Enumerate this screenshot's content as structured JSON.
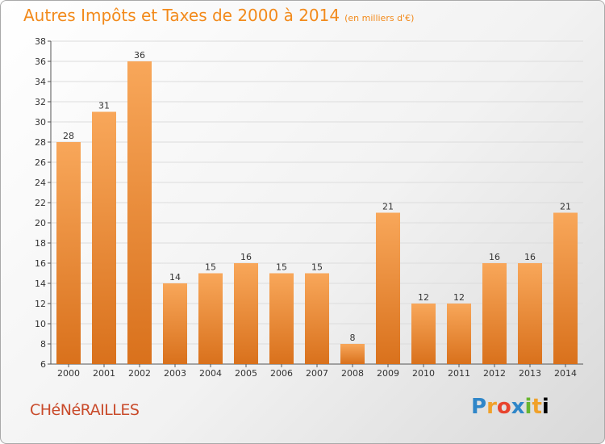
{
  "header": {
    "title": "Autres Impôts et Taxes de 2000 à 2014",
    "subtitle": "(en milliers d'€)"
  },
  "footer": {
    "commune": "CHéNéRAILLES",
    "logo": [
      "P",
      "r",
      "o",
      "x",
      "i",
      "t",
      "i"
    ]
  },
  "colors": {
    "bar_light": "#f8a75a",
    "bar_dark": "#d9711c",
    "title": "#f28a1b",
    "commune": "#c94a2a"
  },
  "chart_data": {
    "type": "bar",
    "title": "Autres Impôts et Taxes de 2000 à 2014",
    "subtitle": "(en milliers d'€)",
    "categories": [
      "2000",
      "2001",
      "2002",
      "2003",
      "2004",
      "2005",
      "2006",
      "2007",
      "2008",
      "2009",
      "2010",
      "2011",
      "2012",
      "2013",
      "2014"
    ],
    "values": [
      28,
      31,
      36,
      14,
      15,
      16,
      15,
      15,
      8,
      21,
      12,
      12,
      16,
      16,
      21
    ],
    "ylim": [
      6,
      38
    ],
    "yticks": [
      6,
      8,
      10,
      12,
      14,
      16,
      18,
      20,
      22,
      24,
      26,
      28,
      30,
      32,
      34,
      36,
      38
    ],
    "grid": true
  }
}
